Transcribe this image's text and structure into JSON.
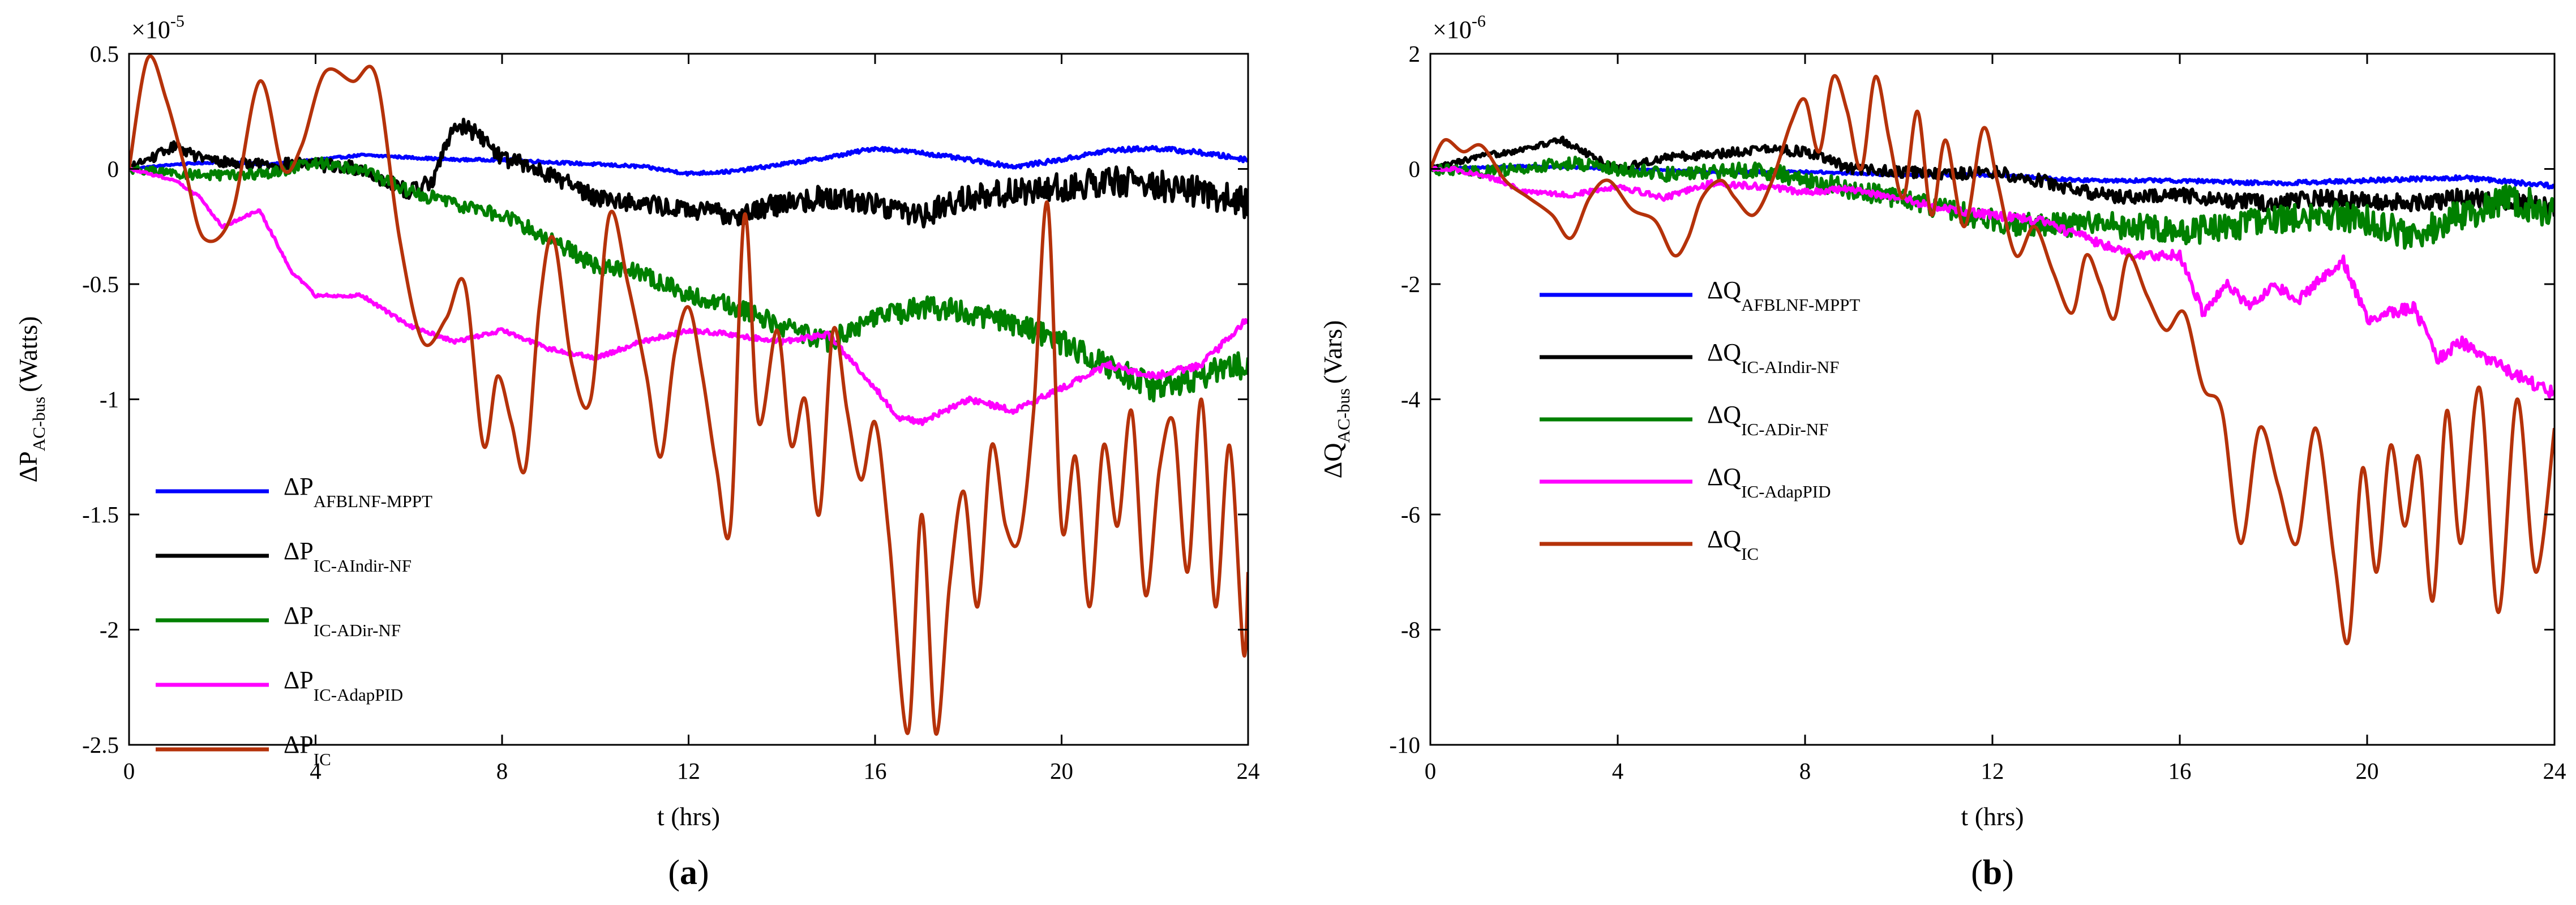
{
  "chart_data": [
    {
      "type": "line",
      "panel": "(a)",
      "panel_letter": "a",
      "multiplier": "×10",
      "multiplier_exp": "-5",
      "ylabel_main": "ΔP",
      "ylabel_sub": "AC-bus",
      "ylabel_unit": "(Watts)",
      "xlabel": "t (hrs)",
      "xlim": [
        0,
        24
      ],
      "ylim": [
        -2.5,
        0.5
      ],
      "xticks": [
        0,
        4,
        8,
        12,
        16,
        20,
        24
      ],
      "xtick_labels": [
        "0",
        "4",
        "8",
        "12",
        "16",
        "20",
        "24"
      ],
      "yticks": [
        0.5,
        0,
        -0.5,
        -1,
        -1.5,
        -2,
        -2.5
      ],
      "ytick_labels": [
        "0.5",
        "0",
        "-0.5",
        "-1",
        "-1.5",
        "-2",
        "-2.5"
      ],
      "legend_position": "lower-left",
      "series": [
        {
          "name_main": "ΔP",
          "name_sub": "AFBLNF-MPPT",
          "color": "#0000ff",
          "noise": 0.008,
          "x": [
            0,
            1,
            2,
            3,
            4,
            5,
            6,
            7,
            8,
            9,
            10,
            11,
            12,
            13,
            14,
            15,
            16,
            17,
            18,
            19,
            20,
            21,
            22,
            23,
            24
          ],
          "y": [
            0,
            0.02,
            0.03,
            0.02,
            0.04,
            0.06,
            0.05,
            0.04,
            0.04,
            0.03,
            0.02,
            0.01,
            -0.02,
            -0.01,
            0.02,
            0.05,
            0.09,
            0.07,
            0.04,
            0.01,
            0.04,
            0.08,
            0.09,
            0.07,
            0.04
          ]
        },
        {
          "name_main": "ΔP",
          "name_sub": "IC-AIndir-NF",
          "color": "#000000",
          "noise": 0.05,
          "x": [
            0,
            0.5,
            1,
            1.5,
            2,
            3,
            4,
            5,
            6,
            6.5,
            7,
            7.5,
            8,
            9,
            10,
            11,
            12,
            13,
            14,
            15,
            16,
            17,
            18,
            19,
            20,
            21,
            22,
            23,
            24
          ],
          "y": [
            0,
            0.05,
            0.1,
            0.05,
            0.03,
            0.02,
            0.02,
            0.0,
            -0.1,
            -0.05,
            0.2,
            0.15,
            0.05,
            -0.02,
            -0.12,
            -0.15,
            -0.18,
            -0.2,
            -0.15,
            -0.12,
            -0.15,
            -0.2,
            -0.12,
            -0.1,
            -0.08,
            -0.05,
            -0.07,
            -0.1,
            -0.15
          ]
        },
        {
          "name_main": "ΔP",
          "name_sub": "IC-ADir-NF",
          "color": "#008000",
          "noise": 0.045,
          "x": [
            0,
            1,
            2,
            3,
            4,
            5,
            6,
            7,
            8,
            9,
            10,
            11,
            12,
            13,
            14,
            15,
            16,
            17,
            18,
            19,
            20,
            21,
            22,
            23,
            24
          ],
          "y": [
            0,
            -0.02,
            -0.03,
            -0.02,
            0.03,
            0.0,
            -0.1,
            -0.15,
            -0.2,
            -0.3,
            -0.42,
            -0.45,
            -0.55,
            -0.6,
            -0.68,
            -0.75,
            -0.65,
            -0.6,
            -0.62,
            -0.68,
            -0.75,
            -0.85,
            -0.95,
            -0.9,
            -0.85
          ]
        },
        {
          "name_main": "ΔP",
          "name_sub": "IC-AdapPID",
          "color": "#ff00ff",
          "noise": 0.012,
          "x": [
            0,
            1,
            1.5,
            2,
            2.8,
            3.5,
            4,
            5,
            6,
            7,
            8,
            9,
            10,
            11,
            12,
            13,
            14,
            15,
            16,
            16.5,
            17,
            18,
            19,
            20,
            21,
            22,
            23,
            23.5,
            24
          ],
          "y": [
            0,
            -0.05,
            -0.12,
            -0.25,
            -0.18,
            -0.45,
            -0.55,
            -0.55,
            -0.68,
            -0.75,
            -0.7,
            -0.78,
            -0.82,
            -0.75,
            -0.7,
            -0.72,
            -0.75,
            -0.72,
            -0.95,
            -1.08,
            -1.1,
            -1.0,
            -1.05,
            -0.95,
            -0.85,
            -0.9,
            -0.85,
            -0.75,
            -0.65
          ]
        },
        {
          "name_main": "ΔP",
          "name_sub": "IC",
          "color": "#b5320a",
          "noise": 0.0,
          "x": [
            0,
            0.4,
            0.8,
            1.2,
            1.6,
            2.2,
            2.8,
            3.3,
            3.7,
            4.2,
            4.8,
            5.3,
            5.8,
            6.3,
            6.8,
            7.2,
            7.6,
            7.9,
            8.2,
            8.5,
            8.8,
            9.1,
            9.5,
            9.9,
            10.3,
            10.7,
            11.1,
            11.4,
            11.7,
            12.0,
            12.3,
            12.6,
            12.9,
            13.2,
            13.5,
            13.9,
            14.2,
            14.5,
            14.8,
            15.1,
            15.4,
            15.7,
            16.0,
            16.3,
            16.7,
            17.0,
            17.3,
            17.6,
            17.9,
            18.2,
            18.5,
            18.8,
            19.1,
            19.4,
            19.7,
            20.0,
            20.3,
            20.6,
            20.9,
            21.2,
            21.5,
            21.8,
            22.1,
            22.4,
            22.7,
            23.0,
            23.3,
            23.6,
            23.9,
            24
          ],
          "y": [
            0.0,
            0.48,
            0.3,
            0.0,
            -0.3,
            -0.2,
            0.38,
            0.0,
            0.1,
            0.42,
            0.38,
            0.4,
            -0.3,
            -0.75,
            -0.65,
            -0.5,
            -1.2,
            -0.9,
            -1.1,
            -1.3,
            -0.6,
            -0.3,
            -0.85,
            -1.0,
            -0.2,
            -0.5,
            -0.9,
            -1.25,
            -0.8,
            -0.6,
            -0.9,
            -1.3,
            -1.55,
            -0.2,
            -1.1,
            -0.7,
            -1.2,
            -1.0,
            -1.5,
            -0.7,
            -1.05,
            -1.35,
            -1.1,
            -1.6,
            -2.45,
            -1.5,
            -2.45,
            -1.8,
            -1.4,
            -1.9,
            -1.2,
            -1.55,
            -1.6,
            -1.05,
            -0.15,
            -1.55,
            -1.25,
            -1.9,
            -1.2,
            -1.55,
            -1.05,
            -1.85,
            -1.3,
            -1.1,
            -1.75,
            -1.0,
            -1.9,
            -1.2,
            -2.1,
            -1.75
          ]
        }
      ]
    },
    {
      "type": "line",
      "panel": "(b)",
      "panel_letter": "b",
      "multiplier": "×10",
      "multiplier_exp": "-6",
      "ylabel_main": "ΔQ",
      "ylabel_sub": "AC-bus",
      "ylabel_unit": "(Vars)",
      "xlabel": "t (hrs)",
      "xlim": [
        0,
        24
      ],
      "ylim": [
        -10,
        2
      ],
      "xticks": [
        0,
        4,
        8,
        12,
        16,
        20,
        24
      ],
      "xtick_labels": [
        "0",
        "4",
        "8",
        "12",
        "16",
        "20",
        "24"
      ],
      "yticks": [
        2,
        0,
        -2,
        -4,
        -6,
        -8,
        -10
      ],
      "ytick_labels": [
        "2",
        "0",
        "-2",
        "-4",
        "-6",
        "-8",
        "-10"
      ],
      "legend_position": "center-left",
      "series": [
        {
          "name_main": "ΔQ",
          "name_sub": "AFBLNF-MPPT",
          "color": "#0000ff",
          "noise": 0.03,
          "x": [
            0,
            2,
            4,
            6,
            8,
            10,
            12,
            14,
            16,
            18,
            20,
            22,
            24
          ],
          "y": [
            0,
            0.05,
            0.0,
            -0.05,
            -0.05,
            -0.1,
            -0.1,
            -0.2,
            -0.2,
            -0.25,
            -0.2,
            -0.15,
            -0.3
          ]
        },
        {
          "name_main": "ΔQ",
          "name_sub": "IC-AIndir-NF",
          "color": "#000000",
          "noise": 0.12,
          "x": [
            0,
            1,
            2,
            2.8,
            3.5,
            4,
            5,
            6,
            7,
            8,
            9,
            10,
            11,
            12,
            13,
            14,
            15,
            16,
            17,
            18,
            19,
            20,
            21,
            22,
            23,
            24
          ],
          "y": [
            0,
            0.2,
            0.35,
            0.5,
            0.2,
            0.0,
            0.2,
            0.25,
            0.35,
            0.3,
            0.0,
            -0.05,
            -0.1,
            -0.05,
            -0.2,
            -0.4,
            -0.5,
            -0.45,
            -0.55,
            -0.6,
            -0.5,
            -0.55,
            -0.6,
            -0.5,
            -0.55,
            -0.7
          ]
        },
        {
          "name_main": "ΔQ",
          "name_sub": "IC-ADir-NF",
          "color": "#008000",
          "noise": 0.22,
          "x": [
            0,
            1,
            2,
            3,
            4,
            5,
            6,
            7,
            8,
            9,
            10,
            11,
            12,
            13,
            14,
            15,
            16,
            17,
            18,
            19,
            20,
            21,
            22,
            23,
            24
          ],
          "y": [
            0,
            -0.05,
            0.0,
            0.1,
            0.0,
            -0.1,
            -0.05,
            0.0,
            -0.2,
            -0.35,
            -0.5,
            -0.7,
            -0.9,
            -1.0,
            -0.95,
            -1.0,
            -1.1,
            -1.0,
            -0.9,
            -0.8,
            -0.9,
            -1.2,
            -0.8,
            -0.5,
            -0.8
          ]
        },
        {
          "name_main": "ΔQ",
          "name_sub": "IC-AdapPID",
          "color": "#ff00ff",
          "noise": 0.08,
          "x": [
            0,
            0.5,
            1,
            1.5,
            2,
            3,
            4,
            5,
            6,
            7,
            8,
            9,
            10,
            11,
            12,
            13,
            14,
            15,
            16,
            16.5,
            17,
            17.5,
            18,
            18.5,
            19,
            19.5,
            20,
            21,
            21.5,
            22,
            23,
            24
          ],
          "y": [
            0,
            0.0,
            -0.1,
            -0.2,
            -0.4,
            -0.45,
            -0.3,
            -0.5,
            -0.25,
            -0.3,
            -0.4,
            -0.35,
            -0.5,
            -0.7,
            -0.8,
            -0.9,
            -1.2,
            -1.5,
            -1.5,
            -2.5,
            -2.0,
            -2.4,
            -2.0,
            -2.3,
            -1.9,
            -1.6,
            -2.6,
            -2.4,
            -3.3,
            -3.0,
            -3.5,
            -3.9
          ]
        },
        {
          "name_main": "ΔQ",
          "name_sub": "IC",
          "color": "#b5320a",
          "noise": 0.0,
          "x": [
            0,
            0.3,
            0.7,
            1.1,
            1.6,
            2.1,
            2.6,
            3.0,
            3.4,
            3.8,
            4.3,
            4.8,
            5.2,
            5.5,
            5.8,
            6.2,
            6.5,
            6.9,
            7.3,
            7.7,
            8.0,
            8.3,
            8.6,
            8.9,
            9.2,
            9.5,
            9.8,
            10.1,
            10.4,
            10.7,
            11.0,
            11.4,
            11.8,
            12.1,
            12.5,
            12.9,
            13.3,
            13.7,
            14.0,
            14.3,
            14.6,
            14.9,
            15.3,
            15.7,
            16.1,
            16.5,
            16.9,
            17.3,
            17.7,
            18.1,
            18.5,
            18.9,
            19.3,
            19.6,
            19.9,
            20.2,
            20.5,
            20.8,
            21.1,
            21.4,
            21.7,
            22.0,
            22.4,
            22.8,
            23.2,
            23.6,
            24
          ],
          "y": [
            0,
            0.5,
            0.3,
            0.4,
            -0.2,
            -0.5,
            -0.8,
            -1.2,
            -0.5,
            -0.2,
            -0.7,
            -0.9,
            -1.5,
            -1.2,
            -0.5,
            -0.2,
            -0.5,
            -0.8,
            -0.2,
            0.8,
            1.2,
            0.3,
            1.6,
            1.0,
            0.0,
            1.6,
            0.5,
            -0.5,
            1.0,
            -0.8,
            0.5,
            -1.0,
            0.7,
            -0.2,
            -1.5,
            -1.0,
            -1.8,
            -2.5,
            -1.5,
            -2.0,
            -2.6,
            -1.5,
            -2.2,
            -2.8,
            -2.5,
            -3.8,
            -4.2,
            -6.5,
            -4.5,
            -5.5,
            -6.5,
            -4.5,
            -6.8,
            -8.2,
            -5.2,
            -7.0,
            -4.8,
            -6.2,
            -5.0,
            -7.5,
            -4.2,
            -6.5,
            -3.8,
            -7.7,
            -4.0,
            -7.0,
            -4.5
          ]
        }
      ]
    }
  ]
}
